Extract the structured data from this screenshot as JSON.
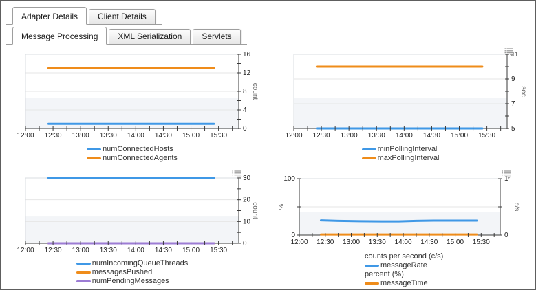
{
  "tabs": {
    "primary": [
      {
        "label": "Adapter Details",
        "active": true
      },
      {
        "label": "Client Details",
        "active": false
      }
    ],
    "secondary": [
      {
        "label": "Message Processing",
        "active": true
      },
      {
        "label": "XML Serialization",
        "active": false
      },
      {
        "label": "Servlets",
        "active": false
      }
    ]
  },
  "colors": {
    "blue": "#3f98e6",
    "orange": "#ef8c1a",
    "purple": "#9c7cd4"
  },
  "chart_data": [
    {
      "type": "line",
      "position": "top-left",
      "x_labels": [
        "12:00",
        "12:30",
        "13:00",
        "13:30",
        "14:00",
        "14:30",
        "15:00",
        "15:30"
      ],
      "ylim": [
        0,
        16
      ],
      "right_axis": {
        "unit": "count",
        "ticks": [
          0,
          4,
          8,
          12,
          16
        ],
        "minor_step": 2
      },
      "grid_values": [
        4,
        8,
        12
      ],
      "series": [
        {
          "name": "numConnectedHosts",
          "color": "blue",
          "x": [
            25,
            205
          ],
          "y": [
            1,
            1
          ]
        },
        {
          "name": "numConnectedAgents",
          "color": "orange",
          "x": [
            25,
            205
          ],
          "y": [
            13,
            13
          ]
        }
      ],
      "legend": [
        {
          "label": "numConnectedHosts",
          "color": "blue"
        },
        {
          "label": "numConnectedAgents",
          "color": "orange"
        }
      ],
      "menu_icon": false
    },
    {
      "type": "line",
      "position": "top-right",
      "x_labels": [
        "12:00",
        "12:30",
        "13:00",
        "13:30",
        "14:00",
        "14:30",
        "15:00",
        "15:30"
      ],
      "ylim": [
        5,
        11
      ],
      "right_axis": {
        "unit": "sec",
        "ticks": [
          5,
          7,
          9,
          11
        ],
        "minor_step": 1
      },
      "grid_values": [
        7,
        9
      ],
      "series": [
        {
          "name": "minPollingInterval",
          "color": "blue",
          "x": [
            25,
            205
          ],
          "y": [
            5,
            5
          ]
        },
        {
          "name": "maxPollingInterval",
          "color": "orange",
          "x": [
            25,
            205
          ],
          "y": [
            10,
            10
          ]
        }
      ],
      "legend": [
        {
          "label": "minPollingInterval",
          "color": "blue"
        },
        {
          "label": "maxPollingInterval",
          "color": "orange"
        }
      ],
      "menu_icon": true
    },
    {
      "type": "line",
      "position": "bottom-left",
      "x_labels": [
        "12:00",
        "12:30",
        "13:00",
        "13:30",
        "14:00",
        "14:30",
        "15:00",
        "15:30"
      ],
      "ylim": [
        0,
        30
      ],
      "right_axis": {
        "unit": "count",
        "ticks": [
          0,
          10,
          20,
          30
        ],
        "minor_step": 5
      },
      "grid_values": [
        10,
        20
      ],
      "series": [
        {
          "name": "numIncomingQueueThreads",
          "color": "blue",
          "x": [
            25,
            205
          ],
          "y": [
            30,
            30
          ]
        },
        {
          "name": "messagesPushed",
          "color": "orange",
          "x": [
            25,
            205
          ],
          "y": [
            0,
            0
          ]
        },
        {
          "name": "numPendingMessages",
          "color": "purple",
          "x": [
            25,
            205
          ],
          "y": [
            0,
            0
          ]
        }
      ],
      "legend": [
        {
          "label": "numIncomingQueueThreads",
          "color": "blue"
        },
        {
          "label": "messagesPushed",
          "color": "orange"
        },
        {
          "label": "numPendingMessages",
          "color": "purple"
        }
      ],
      "menu_icon": true
    },
    {
      "type": "line",
      "position": "bottom-right",
      "x_labels": [
        "12:00",
        "12:30",
        "13:00",
        "13:30",
        "14:00",
        "14:30",
        "15:00",
        "15:30"
      ],
      "ylim": [
        0,
        1
      ],
      "right_axis": {
        "unit": "c/s",
        "ticks": [
          0,
          1
        ],
        "minor_step": 0.5
      },
      "left_axis": {
        "unit": "%",
        "lim": [
          0,
          100
        ],
        "ticks": [
          0,
          100
        ],
        "minor_step": 50
      },
      "grid_values": [
        0.5
      ],
      "series": [
        {
          "name": "messageRate",
          "color": "blue",
          "x": [
            25,
            45,
            70,
            95,
            115,
            135,
            155,
            175,
            205
          ],
          "y": [
            0.26,
            0.252,
            0.246,
            0.242,
            0.243,
            0.252,
            0.256,
            0.256,
            0.256
          ]
        },
        {
          "name": "messageTime",
          "color": "orange",
          "x": [
            25,
            205
          ],
          "y": [
            0.01,
            0.01
          ]
        }
      ],
      "legend": [
        {
          "group": "counts per second (c/s)"
        },
        {
          "label": "messageRate",
          "color": "blue"
        },
        {
          "group": "percent (%)"
        },
        {
          "label": "messageTime",
          "color": "orange"
        }
      ],
      "menu_icon": true
    }
  ]
}
